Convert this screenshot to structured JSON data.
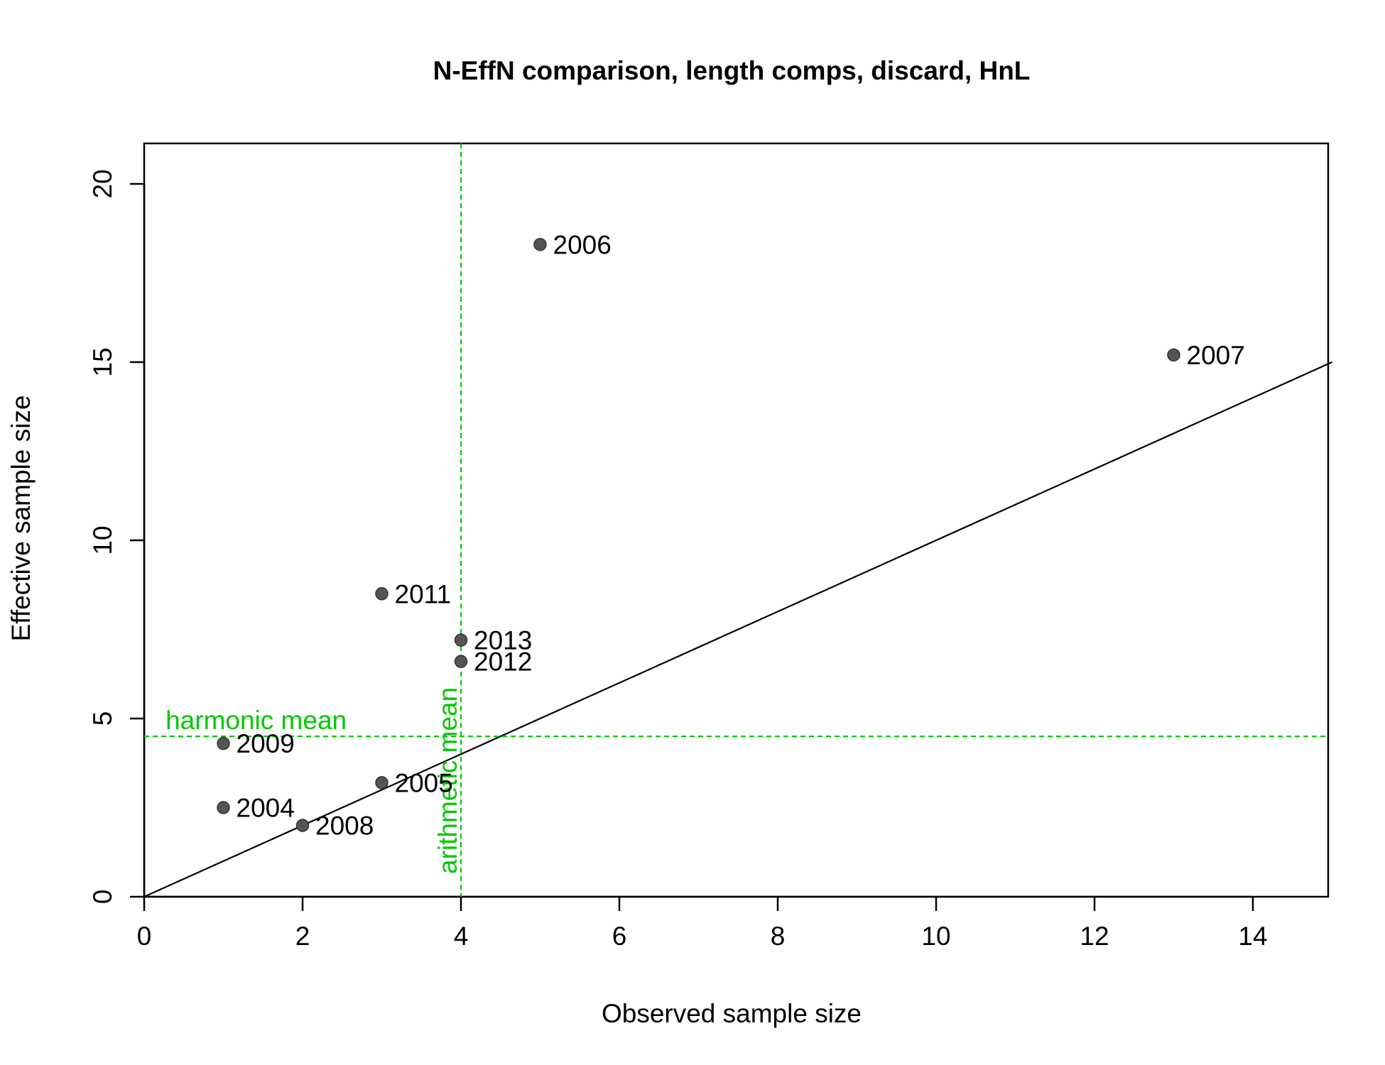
{
  "chart_data": {
    "type": "scatter",
    "title": "N-EffN comparison, length comps, discard, HnL",
    "xlabel": "Observed sample size",
    "ylabel": "Effective sample size",
    "xlim": [
      0,
      15
    ],
    "ylim": [
      0,
      21
    ],
    "xticks": [
      0,
      2,
      4,
      6,
      8,
      10,
      12,
      14
    ],
    "yticks": [
      0,
      5,
      10,
      15,
      20
    ],
    "points": [
      {
        "label": "2004",
        "x": 1,
        "y": 2.5
      },
      {
        "label": "2005",
        "x": 3,
        "y": 3.2
      },
      {
        "label": "2006",
        "x": 5,
        "y": 18.3
      },
      {
        "label": "2007",
        "x": 13,
        "y": 15.2
      },
      {
        "label": "2008",
        "x": 2,
        "y": 2.0
      },
      {
        "label": "2009",
        "x": 1,
        "y": 4.3
      },
      {
        "label": "2011",
        "x": 3,
        "y": 8.5
      },
      {
        "label": "2012",
        "x": 4,
        "y": 6.6
      },
      {
        "label": "2013",
        "x": 4,
        "y": 7.2
      }
    ],
    "reference_lines": {
      "one_to_one": true,
      "harmonic_mean": {
        "label": "harmonic mean",
        "value": 4.5
      },
      "arithmetic_mean": {
        "label": "arithmetic mean",
        "value": 4.0
      }
    },
    "grid": false,
    "colors": {
      "points": "#555555",
      "mean_lines": "#00c800",
      "one_to_one": "#000000"
    }
  }
}
